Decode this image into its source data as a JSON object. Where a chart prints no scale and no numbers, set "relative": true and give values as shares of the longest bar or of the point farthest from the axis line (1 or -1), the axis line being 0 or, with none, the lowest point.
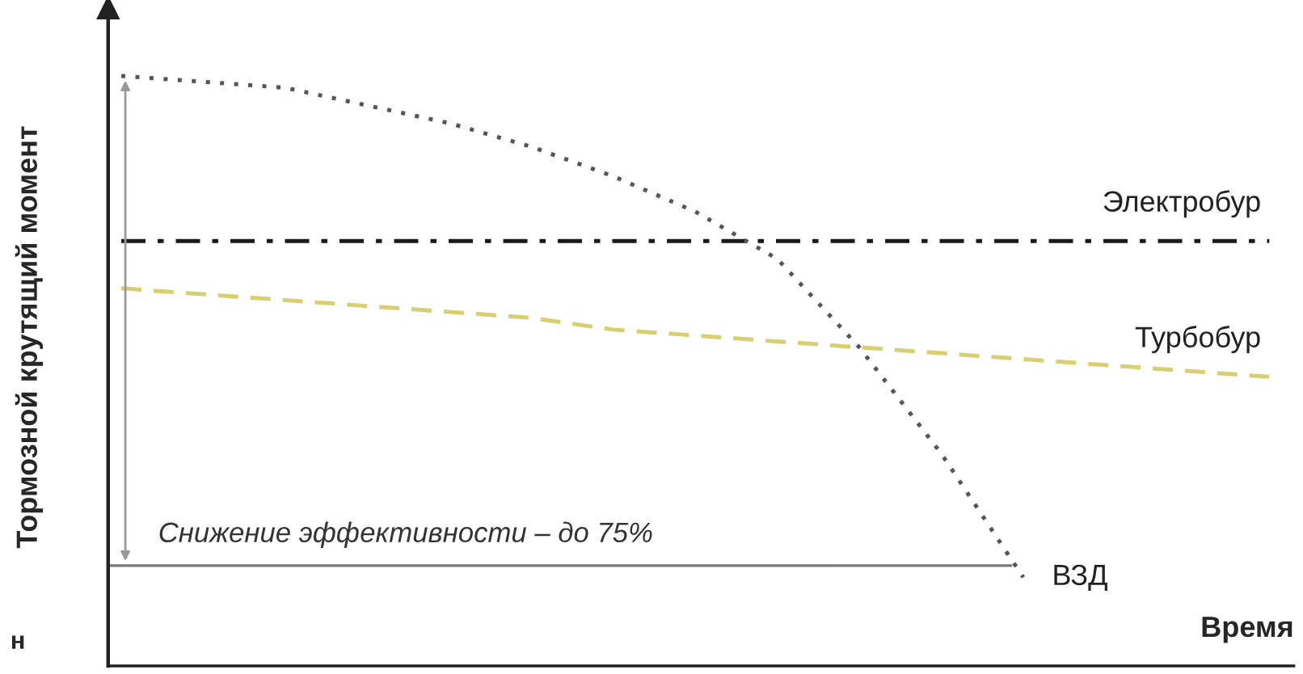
{
  "chart_data": {
    "type": "line",
    "relative": true,
    "xlabel": "Время",
    "ylabel": "Тормозной крутящий момент",
    "categories": [
      null,
      null,
      null,
      null,
      null,
      null,
      null,
      null,
      null,
      null,
      null,
      null,
      null,
      null,
      null
    ],
    "series": [
      {
        "name": "Электробур",
        "color": "#1a1a1a",
        "line_style": "dashdot",
        "values": [
          0.72,
          0.72,
          0.72,
          0.72,
          0.72,
          0.72,
          0.72,
          0.72,
          0.72,
          0.72,
          0.72,
          0.72,
          0.72,
          0.72,
          0.72
        ]
      },
      {
        "name": "Турбобур",
        "color": "#d8cf70",
        "line_style": "dashed",
        "values": [
          0.64,
          0.63,
          0.62,
          0.61,
          0.6,
          0.59,
          0.57,
          0.56,
          0.55,
          0.54,
          0.53,
          0.52,
          0.51,
          0.5,
          0.49
        ]
      },
      {
        "name": "ВЗД",
        "color": "#555555",
        "line_style": "dotted",
        "values": [
          1.0,
          0.99,
          0.98,
          0.95,
          0.92,
          0.88,
          0.83,
          0.77,
          0.69,
          0.54,
          0.36,
          0.15,
          null,
          null,
          null
        ]
      }
    ],
    "ref_lines": [
      {
        "axis": "y",
        "value": 0.17,
        "color": "#777777",
        "line_style": "solid"
      }
    ],
    "annotations": [
      "Снижение эффективности – до 75%",
      "н"
    ],
    "legend": false
  }
}
